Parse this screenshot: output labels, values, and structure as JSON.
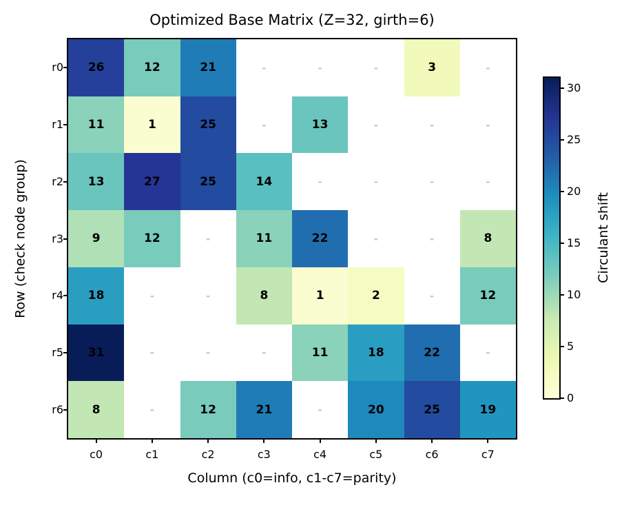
{
  "chart_data": {
    "type": "heatmap",
    "title": "Optimized Base Matrix (Z=32, girth=6)",
    "xlabel": "Column (c0=info, c1-c7=parity)",
    "ylabel": "Row (check node group)",
    "rows": [
      "r0",
      "r1",
      "r2",
      "r3",
      "r4",
      "r5",
      "r6"
    ],
    "columns": [
      "c0",
      "c1",
      "c2",
      "c3",
      "c4",
      "c5",
      "c6",
      "c7"
    ],
    "values": [
      [
        26,
        12,
        21,
        null,
        null,
        null,
        3,
        null
      ],
      [
        11,
        1,
        25,
        null,
        13,
        null,
        null,
        null
      ],
      [
        13,
        27,
        25,
        14,
        null,
        null,
        null,
        null
      ],
      [
        9,
        12,
        null,
        11,
        22,
        null,
        null,
        8
      ],
      [
        18,
        null,
        null,
        8,
        1,
        2,
        null,
        12
      ],
      [
        31,
        null,
        null,
        null,
        11,
        18,
        22,
        null
      ],
      [
        8,
        null,
        12,
        21,
        null,
        20,
        25,
        19
      ]
    ],
    "empty_marker": "-",
    "vmin": 0,
    "vmax": 31,
    "colormap": "YlGnBu",
    "colormap_stops": [
      "#ffffd9",
      "#edf8b1",
      "#c7e9b4",
      "#7fcdbb",
      "#41b6c4",
      "#1d91c0",
      "#225ea8",
      "#253494",
      "#081d58"
    ],
    "empty_cell_color": "#ffffff",
    "annotation_color": "#000000",
    "empty_marker_color": "#c9c9c9",
    "colorbar_label": "Circulant shift",
    "colorbar_ticks": [
      0,
      5,
      10,
      15,
      20,
      25,
      30
    ],
    "grid": false,
    "legend": false
  }
}
